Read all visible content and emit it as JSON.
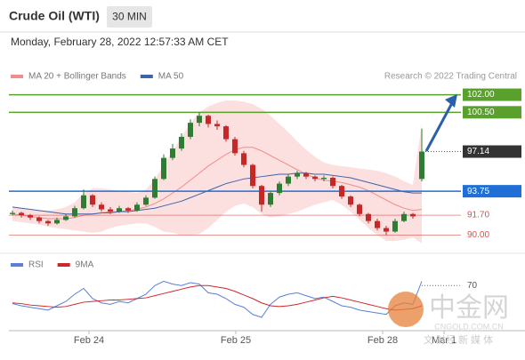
{
  "header": {
    "title": "Crude Oil (WTI)",
    "interval": "30 MIN",
    "timestamp": "Monday, February 28, 2022 12:57:33 AM CET",
    "credit": "Research © 2022 Trading Central"
  },
  "watermark": {
    "name": "中金网",
    "domain": "CNGOLD.COM.CN",
    "slogan": "文 财经 新 媒 体"
  },
  "chart_data": [
    {
      "type": "candlestick",
      "ylim": [
        89.2,
        102.5
      ],
      "up_color": "#2e7d32",
      "down_color": "#c62828",
      "candles": [
        [
          91.8,
          92.1,
          91.7,
          91.9
        ],
        [
          91.9,
          92.0,
          91.5,
          91.7
        ],
        [
          91.7,
          91.8,
          91.3,
          91.5
        ],
        [
          91.5,
          91.6,
          91.0,
          91.2
        ],
        [
          91.2,
          91.3,
          90.8,
          91.0
        ],
        [
          91.0,
          91.5,
          90.9,
          91.3
        ],
        [
          91.3,
          91.8,
          91.2,
          91.6
        ],
        [
          91.6,
          92.5,
          91.5,
          92.3
        ],
        [
          92.3,
          93.9,
          92.2,
          93.4
        ],
        [
          93.4,
          93.5,
          92.4,
          92.6
        ],
        [
          92.6,
          92.8,
          92.0,
          92.2
        ],
        [
          92.2,
          92.4,
          91.8,
          92.0
        ],
        [
          92.0,
          92.5,
          91.9,
          92.3
        ],
        [
          92.3,
          92.4,
          91.9,
          92.1
        ],
        [
          92.1,
          92.8,
          92.0,
          92.6
        ],
        [
          92.6,
          93.4,
          92.5,
          93.2
        ],
        [
          93.2,
          95.0,
          93.1,
          94.8
        ],
        [
          94.8,
          96.9,
          94.7,
          96.6
        ],
        [
          96.6,
          97.8,
          96.4,
          97.4
        ],
        [
          97.4,
          98.7,
          97.2,
          98.4
        ],
        [
          98.4,
          99.9,
          98.2,
          99.6
        ],
        [
          99.6,
          100.5,
          99.3,
          100.2
        ],
        [
          100.2,
          100.3,
          99.2,
          99.5
        ],
        [
          99.5,
          99.8,
          99.0,
          99.3
        ],
        [
          99.3,
          99.4,
          98.0,
          98.2
        ],
        [
          98.2,
          98.4,
          96.8,
          97.0
        ],
        [
          97.0,
          97.2,
          95.8,
          96.0
        ],
        [
          96.0,
          96.1,
          94.0,
          94.2
        ],
        [
          94.2,
          94.3,
          92.0,
          92.6
        ],
        [
          92.6,
          93.8,
          92.4,
          93.6
        ],
        [
          93.6,
          94.6,
          93.4,
          94.4
        ],
        [
          94.4,
          95.2,
          94.2,
          95.0
        ],
        [
          95.0,
          95.5,
          94.8,
          95.3
        ],
        [
          95.3,
          95.4,
          94.8,
          95.0
        ],
        [
          95.0,
          95.1,
          94.6,
          94.8
        ],
        [
          94.8,
          95.1,
          94.6,
          94.9
        ],
        [
          94.9,
          95.0,
          94.0,
          94.2
        ],
        [
          94.2,
          94.3,
          93.1,
          93.3
        ],
        [
          93.3,
          93.4,
          92.4,
          92.6
        ],
        [
          92.6,
          92.7,
          91.6,
          91.8
        ],
        [
          91.8,
          91.9,
          91.0,
          91.2
        ],
        [
          91.2,
          91.4,
          90.4,
          90.6
        ],
        [
          90.6,
          90.8,
          90.0,
          90.3
        ],
        [
          90.3,
          91.4,
          90.2,
          91.2
        ],
        [
          91.2,
          92.0,
          91.1,
          91.8
        ],
        [
          91.8,
          91.9,
          91.4,
          91.6
        ],
        [
          94.8,
          99.1,
          94.6,
          97.14
        ]
      ],
      "bands": {
        "name": "MA 20 + Bollinger Bands",
        "color": "#f08c8c",
        "fill": "#fbd9d9",
        "upper": [
          92.4,
          92.3,
          92.2,
          92.1,
          92.1,
          92.2,
          92.4,
          92.8,
          93.6,
          94.0,
          94.0,
          93.9,
          93.8,
          93.7,
          93.6,
          93.9,
          94.8,
          96.0,
          97.2,
          98.4,
          99.6,
          100.5,
          101.0,
          101.3,
          101.5,
          101.5,
          101.4,
          101.2,
          100.8,
          100.2,
          99.5,
          98.8,
          98.0,
          97.3,
          96.7,
          96.2,
          96.0,
          95.9,
          95.8,
          95.7,
          95.6,
          95.5,
          95.3,
          95.0,
          94.6,
          94.3,
          99.5
        ],
        "middle": [
          91.8,
          91.7,
          91.6,
          91.5,
          91.4,
          91.4,
          91.4,
          91.5,
          91.7,
          91.8,
          91.9,
          92.0,
          92.0,
          92.1,
          92.2,
          92.4,
          92.7,
          93.1,
          93.6,
          94.1,
          94.7,
          95.3,
          95.9,
          96.4,
          96.9,
          97.3,
          97.5,
          97.5,
          97.2,
          96.8,
          96.4,
          96.0,
          95.6,
          95.2,
          94.9,
          94.7,
          94.6,
          94.5,
          94.3,
          94.1,
          93.8,
          93.4,
          93.0,
          92.6,
          92.3,
          92.1,
          92.2
        ],
        "lower": [
          91.2,
          91.1,
          91.0,
          90.9,
          90.7,
          90.6,
          90.5,
          90.4,
          90.3,
          90.2,
          90.3,
          90.6,
          90.8,
          90.9,
          91.0,
          91.0,
          90.7,
          90.3,
          90.2,
          90.0,
          90.0,
          90.1,
          90.6,
          91.3,
          92.0,
          92.5,
          92.7,
          92.4,
          91.8,
          91.5,
          91.6,
          91.8,
          92.0,
          92.3,
          92.6,
          92.8,
          93.0,
          92.6,
          92.0,
          91.3,
          90.6,
          90.0,
          89.5,
          89.5,
          89.6,
          89.8,
          89.3
        ]
      },
      "series": [
        {
          "name": "MA 50",
          "color": "#3f63a8",
          "values": [
            92.4,
            92.3,
            92.2,
            92.1,
            92.0,
            91.9,
            91.8,
            91.8,
            91.8,
            91.8,
            91.9,
            91.9,
            92.0,
            92.0,
            92.1,
            92.2,
            92.3,
            92.5,
            92.7,
            92.9,
            93.2,
            93.5,
            93.8,
            94.1,
            94.4,
            94.6,
            94.8,
            94.9,
            95.0,
            95.1,
            95.2,
            95.2,
            95.3,
            95.3,
            95.2,
            95.2,
            95.1,
            95.0,
            94.9,
            94.7,
            94.5,
            94.3,
            94.1,
            93.9,
            93.7,
            93.6,
            93.6
          ]
        }
      ],
      "levels": [
        {
          "value": 102,
          "label": "102.00",
          "color": "#5aa02c",
          "style": "box"
        },
        {
          "value": 100.5,
          "label": "100.50",
          "color": "#5aa02c",
          "style": "box"
        },
        {
          "value": 97.14,
          "label": "97.14",
          "color": "#333333",
          "style": "current"
        },
        {
          "value": 93.75,
          "label": "93.75",
          "color": "#1f6fd6",
          "style": "box"
        },
        {
          "value": 91.7,
          "label": "91.70",
          "color": "#d9534f",
          "style": "text"
        },
        {
          "value": 90,
          "label": "90.00",
          "color": "#d9534f",
          "style": "text"
        }
      ]
    },
    {
      "type": "line",
      "ylim": [
        10,
        90
      ],
      "yticks": [
        70
      ],
      "x_labels": [
        "Feb 24",
        "Feb 25",
        "Feb 28",
        "Mar 1"
      ],
      "series": [
        {
          "name": "RSI",
          "color": "#5b7fd6",
          "values": [
            45,
            42,
            40,
            38,
            36,
            42,
            48,
            58,
            66,
            52,
            46,
            44,
            48,
            46,
            52,
            58,
            70,
            76,
            72,
            70,
            74,
            72,
            60,
            58,
            52,
            44,
            40,
            30,
            26,
            44,
            54,
            58,
            60,
            56,
            52,
            54,
            48,
            42,
            40,
            36,
            34,
            32,
            30,
            42,
            46,
            44,
            76
          ]
        },
        {
          "name": "9MA",
          "color": "#d0262b",
          "values": [
            46,
            45,
            43,
            42,
            41,
            40,
            41,
            44,
            47,
            48,
            49,
            50,
            50,
            51,
            52,
            53,
            56,
            59,
            62,
            65,
            68,
            70,
            70,
            68,
            66,
            62,
            57,
            52,
            46,
            42,
            41,
            42,
            44,
            47,
            50,
            53,
            55,
            53,
            50,
            47,
            44,
            41,
            38,
            36,
            37,
            38,
            42
          ]
        }
      ]
    }
  ]
}
